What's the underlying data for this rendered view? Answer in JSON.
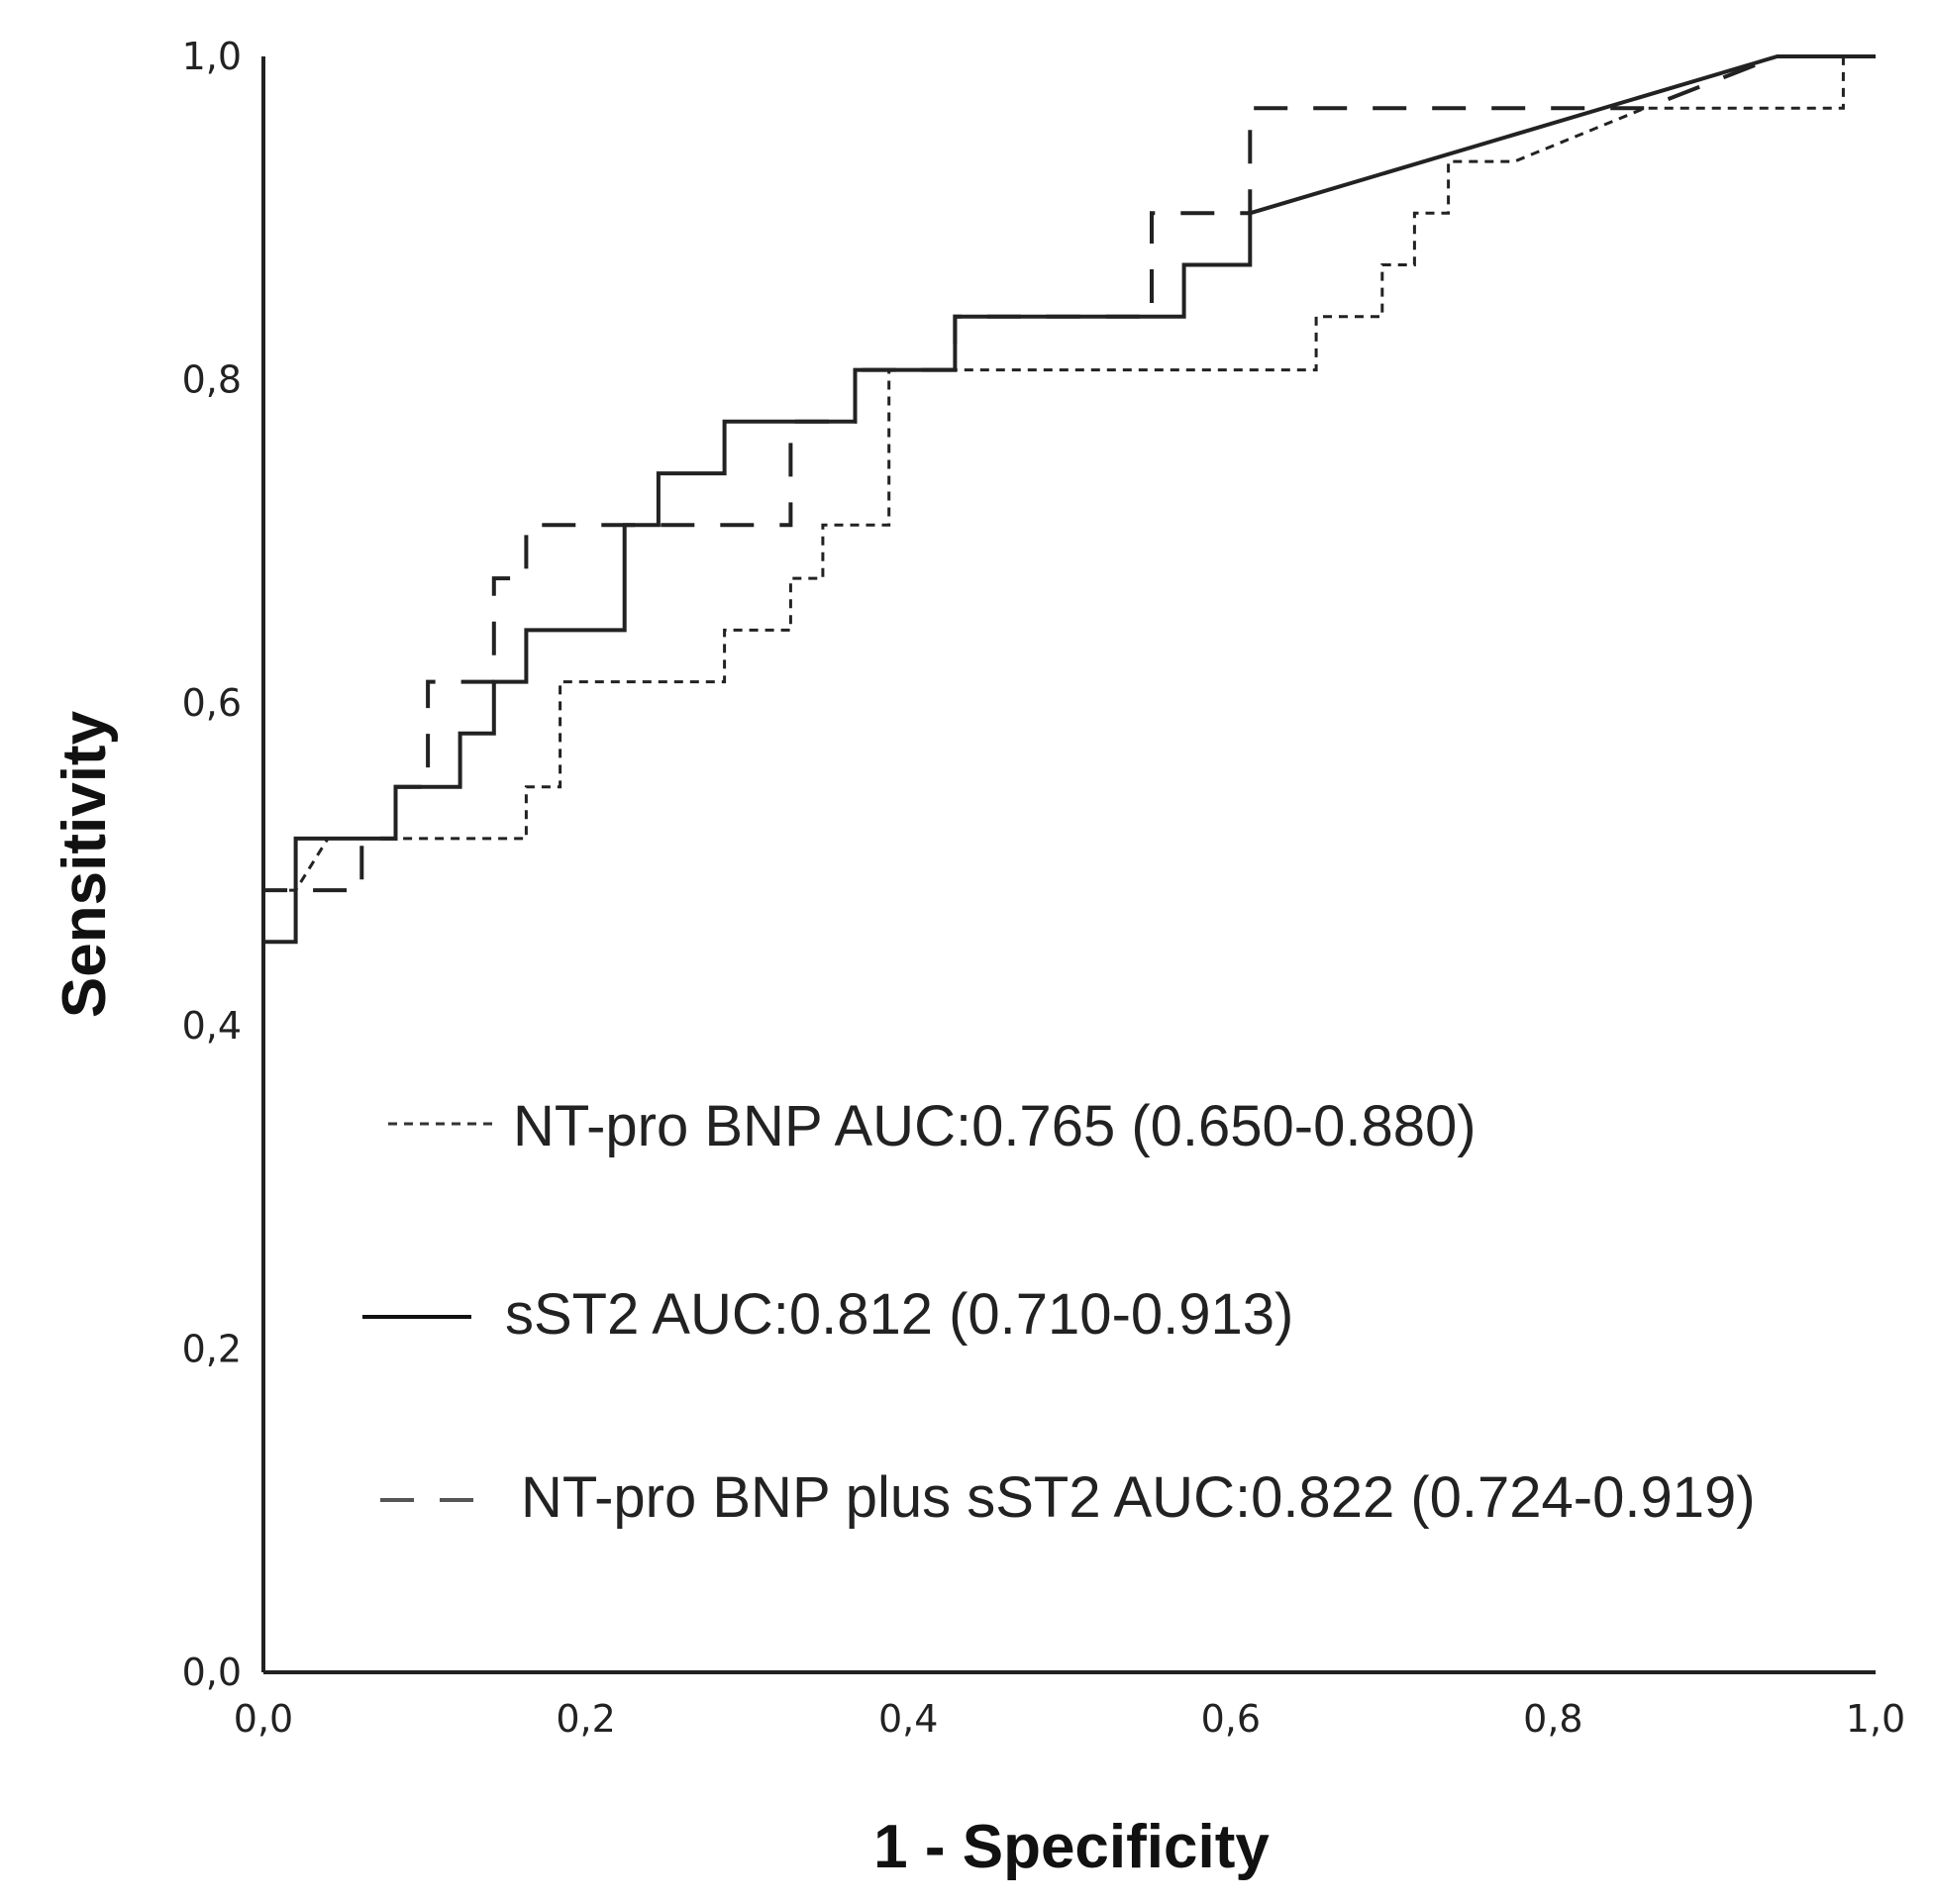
{
  "chart_data": {
    "type": "line",
    "title": "",
    "xlabel": "1 - Specificity",
    "ylabel": "Sensitivity",
    "xlim": [
      0,
      1
    ],
    "ylim": [
      0,
      1
    ],
    "x_ticks": [
      "0,0",
      "0,2",
      "0,4",
      "0,6",
      "0,8",
      "1,0"
    ],
    "y_ticks": [
      "0,0",
      "0,2",
      "0,4",
      "0,6",
      "0,8",
      "1,0"
    ],
    "grid": false,
    "legend_position": "center",
    "series": [
      {
        "name": "NT-pro BNP",
        "label": "NT-pro BNP AUC:0.765 (0.650-0.880)",
        "style": "short-dash",
        "color": "#333333",
        "points": [
          [
            0,
            0
          ],
          [
            0,
            0.484
          ],
          [
            0.02,
            0.484
          ],
          [
            0.04,
            0.516
          ],
          [
            0.163,
            0.516
          ],
          [
            0.163,
            0.548
          ],
          [
            0.184,
            0.548
          ],
          [
            0.184,
            0.613
          ],
          [
            0.286,
            0.613
          ],
          [
            0.286,
            0.645
          ],
          [
            0.327,
            0.645
          ],
          [
            0.327,
            0.677
          ],
          [
            0.347,
            0.677
          ],
          [
            0.347,
            0.71
          ],
          [
            0.388,
            0.71
          ],
          [
            0.388,
            0.806
          ],
          [
            0.653,
            0.806
          ],
          [
            0.653,
            0.839
          ],
          [
            0.694,
            0.839
          ],
          [
            0.694,
            0.871
          ],
          [
            0.714,
            0.871
          ],
          [
            0.714,
            0.903
          ],
          [
            0.735,
            0.903
          ],
          [
            0.735,
            0.935
          ],
          [
            0.776,
            0.935
          ],
          [
            0.857,
            0.968
          ],
          [
            0.98,
            0.968
          ],
          [
            0.98,
            1.0
          ],
          [
            1.0,
            1.0
          ]
        ]
      },
      {
        "name": "sST2",
        "label": "sST2 AUC:0.812 (0.710-0.913)",
        "style": "solid",
        "color": "#111111",
        "points": [
          [
            0,
            0
          ],
          [
            0,
            0.452
          ],
          [
            0.02,
            0.452
          ],
          [
            0.02,
            0.516
          ],
          [
            0.082,
            0.516
          ],
          [
            0.082,
            0.548
          ],
          [
            0.122,
            0.548
          ],
          [
            0.122,
            0.581
          ],
          [
            0.143,
            0.581
          ],
          [
            0.143,
            0.613
          ],
          [
            0.163,
            0.613
          ],
          [
            0.163,
            0.645
          ],
          [
            0.224,
            0.645
          ],
          [
            0.224,
            0.71
          ],
          [
            0.245,
            0.71
          ],
          [
            0.245,
            0.742
          ],
          [
            0.286,
            0.742
          ],
          [
            0.286,
            0.774
          ],
          [
            0.367,
            0.774
          ],
          [
            0.367,
            0.806
          ],
          [
            0.429,
            0.806
          ],
          [
            0.429,
            0.839
          ],
          [
            0.571,
            0.839
          ],
          [
            0.571,
            0.871
          ],
          [
            0.612,
            0.871
          ],
          [
            0.612,
            0.903
          ],
          [
            0.939,
            1.0
          ],
          [
            1.0,
            1.0
          ]
        ]
      },
      {
        "name": "NT-pro BNP plus sST2",
        "label": "NT-pro BNP plus sST2 AUC:0.822 (0.724-0.919)",
        "style": "long-dash",
        "color": "#555555",
        "points": [
          [
            0,
            0
          ],
          [
            0,
            0.484
          ],
          [
            0.061,
            0.484
          ],
          [
            0.061,
            0.516
          ],
          [
            0.082,
            0.516
          ],
          [
            0.082,
            0.548
          ],
          [
            0.102,
            0.548
          ],
          [
            0.102,
            0.613
          ],
          [
            0.143,
            0.613
          ],
          [
            0.143,
            0.677
          ],
          [
            0.163,
            0.677
          ],
          [
            0.163,
            0.71
          ],
          [
            0.327,
            0.71
          ],
          [
            0.327,
            0.774
          ],
          [
            0.367,
            0.774
          ],
          [
            0.367,
            0.806
          ],
          [
            0.429,
            0.806
          ],
          [
            0.429,
            0.839
          ],
          [
            0.551,
            0.839
          ],
          [
            0.551,
            0.903
          ],
          [
            0.612,
            0.903
          ],
          [
            0.612,
            0.968
          ],
          [
            0.857,
            0.968
          ],
          [
            0.939,
            1.0
          ],
          [
            1.0,
            1.0
          ]
        ]
      }
    ]
  }
}
